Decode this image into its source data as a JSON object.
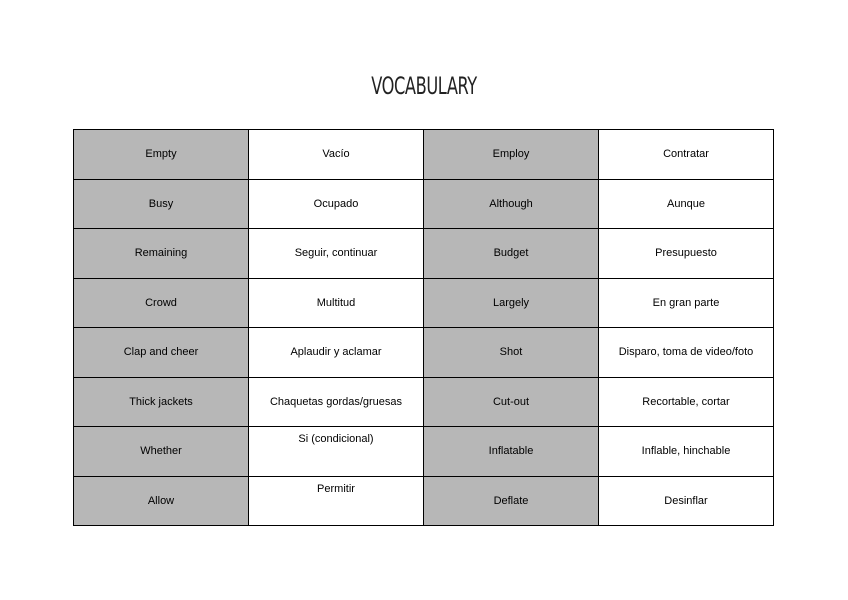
{
  "title": "VOCABULARY",
  "table": {
    "rows": [
      [
        "Empty",
        "Vacío",
        "Employ",
        "Contratar"
      ],
      [
        "Busy",
        "Ocupado",
        "Although",
        "Aunque"
      ],
      [
        "Remaining",
        "Seguir, continuar",
        "Budget",
        "Presupuesto"
      ],
      [
        "Crowd",
        "Multitud",
        "Largely",
        "En gran parte"
      ],
      [
        "Clap and cheer",
        "Aplaudir y aclamar",
        "Shot",
        "Disparo, toma de video/foto"
      ],
      [
        "Thick jackets",
        "Chaquetas gordas/gruesas",
        "Cut-out",
        "Recortable, cortar"
      ],
      [
        "Whether",
        "Si (condicional)",
        "Inflatable",
        "Inflable, hinchable"
      ],
      [
        "Allow",
        "Permitir",
        "Deflate",
        "Desinflar"
      ]
    ]
  }
}
